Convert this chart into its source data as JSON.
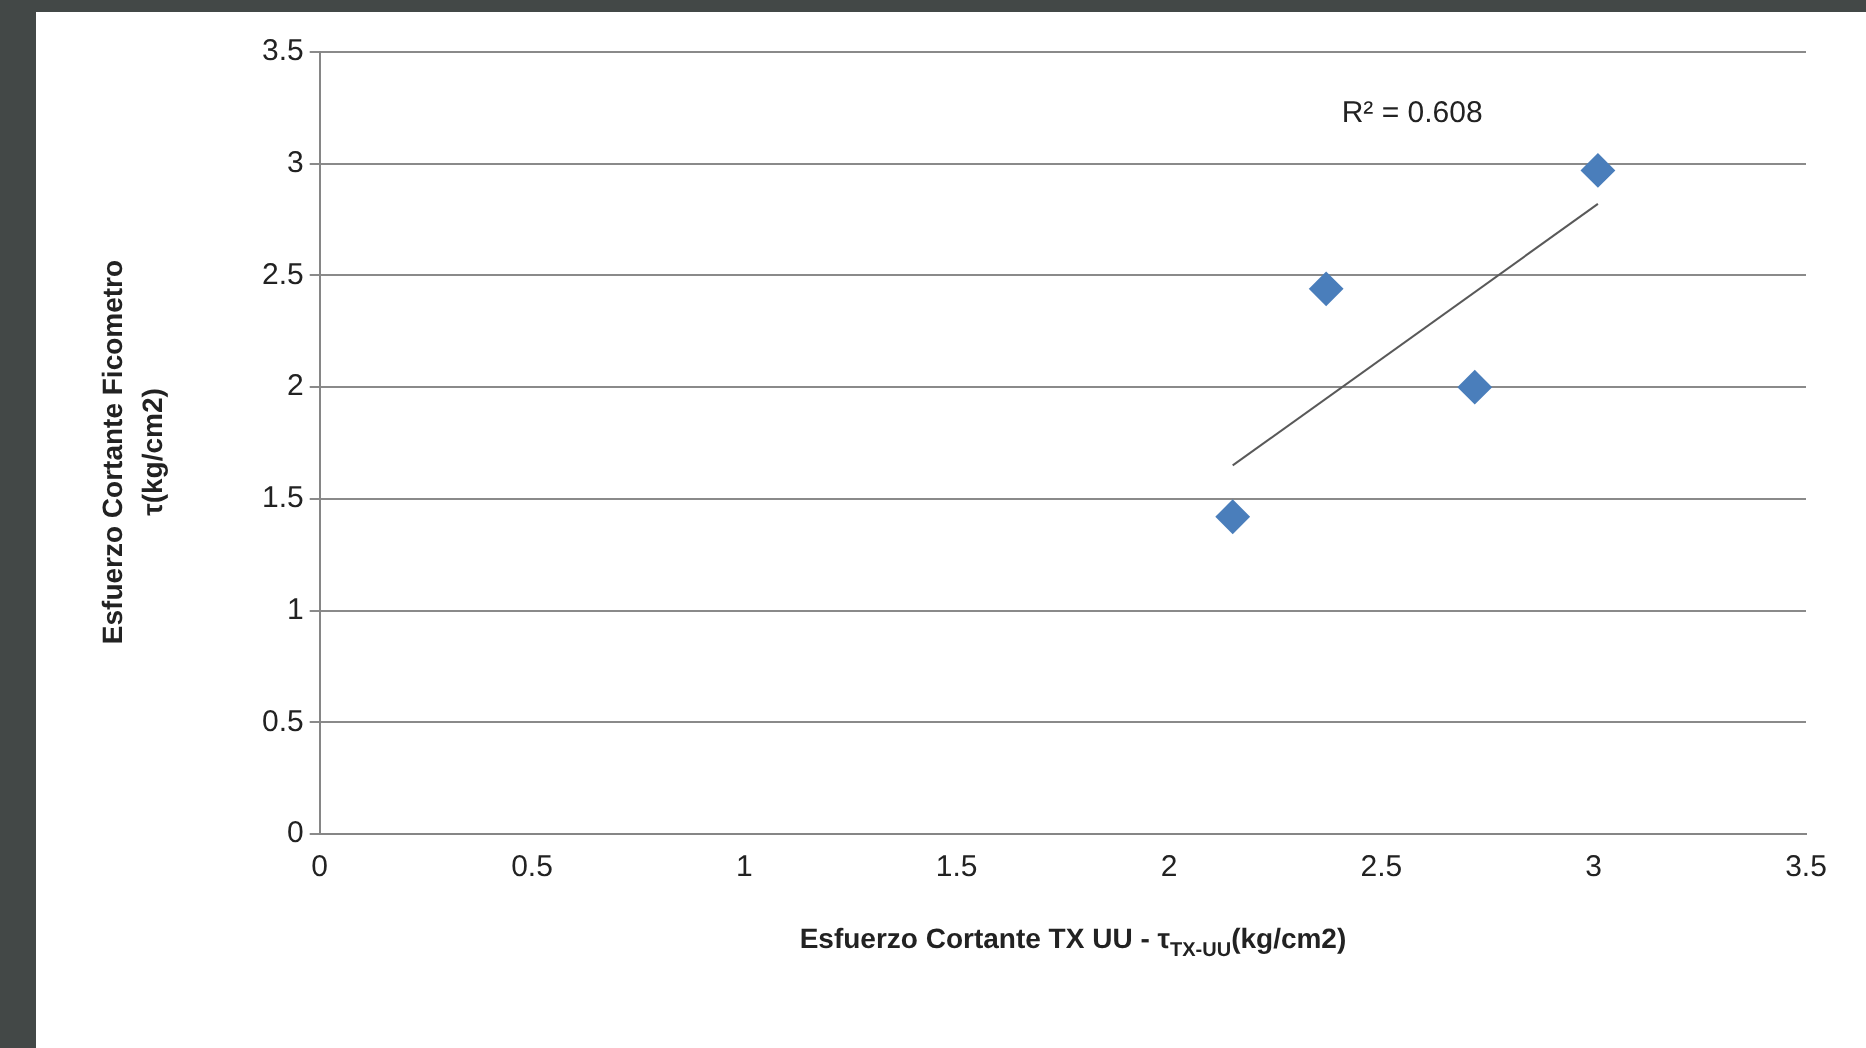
{
  "chart_data": {
    "type": "scatter",
    "xlabel": "Esfuerzo Cortante TX UU - τ$_{TX-UU}$(kg/cm2)",
    "ylabel": "Esfuerzo Cortante Ficometro\nτ(kg/cm2)",
    "x": [
      2.15,
      2.37,
      2.72,
      3.01
    ],
    "values": [
      1.42,
      2.44,
      2.0,
      2.97
    ],
    "color": "#4a7ebb",
    "marker": "diamond",
    "series": [
      {
        "type": "line",
        "x": [
          2.15,
          3.01
        ],
        "values": [
          1.65,
          2.82
        ],
        "color": "#595959",
        "marker": "none"
      }
    ],
    "annotations": [
      "R² = 0.608"
    ],
    "xlim": [
      0,
      3.5
    ],
    "xticks": [
      0,
      0.5,
      1,
      1.5,
      2,
      2.5,
      3,
      3.5
    ],
    "ylim": [
      0,
      3.5
    ],
    "yticks": [
      0,
      0.5,
      1,
      1.5,
      2,
      2.5,
      3,
      3.5
    ],
    "grid": "y",
    "legend": false
  }
}
